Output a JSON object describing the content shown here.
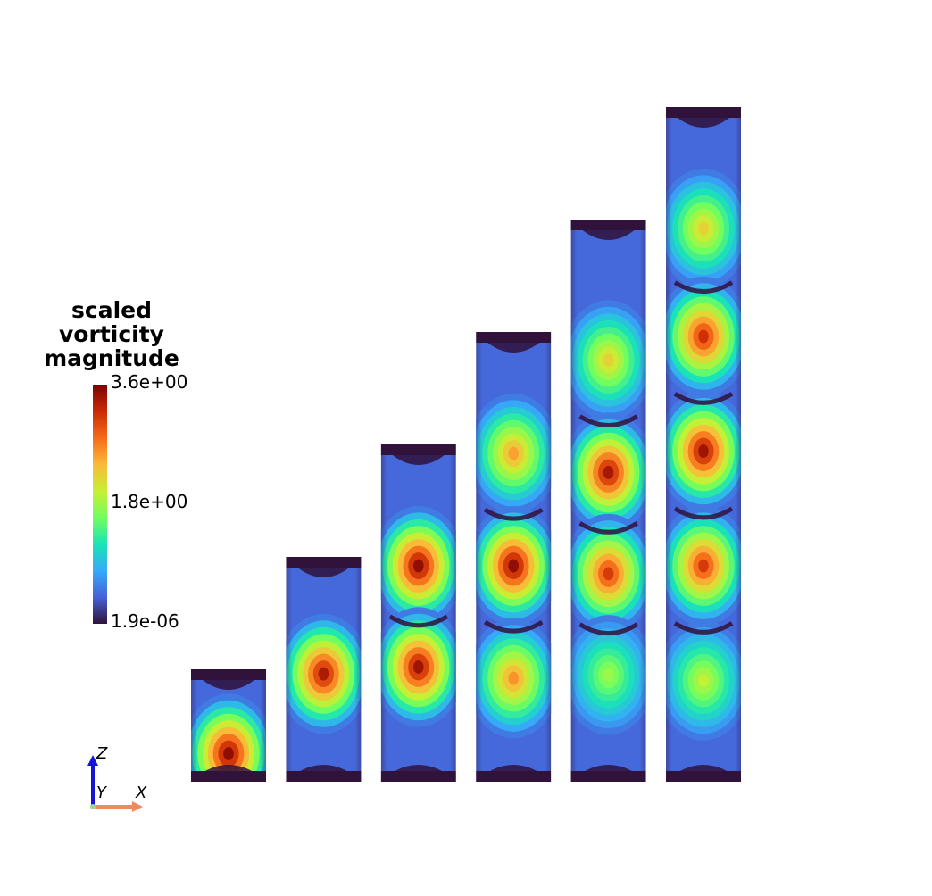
{
  "legend": {
    "title_lines": [
      "scaled",
      "vorticity",
      "magnitude"
    ],
    "max_label": "3.6e+00",
    "mid_label": "1.8e+00",
    "min_label": "1.9e-06",
    "colormap": [
      "#30123b",
      "#4662d7",
      "#36aaf9",
      "#1ae4b6",
      "#72fe5e",
      "#c8ef34",
      "#faba39",
      "#f66b19",
      "#ca2a04",
      "#7a0403"
    ]
  },
  "axes": {
    "z": "Z",
    "y": "Y",
    "x": "X",
    "z_color": "#1414d4",
    "x_color": "#f08a5d"
  },
  "panels": [
    {
      "aspect": 1.5,
      "cores": [
        0.75
      ],
      "core_level": [
        0.97
      ]
    },
    {
      "aspect": 3.0,
      "cores": [
        0.52
      ],
      "core_level": [
        0.93
      ]
    },
    {
      "aspect": 4.5,
      "cores": [
        0.36,
        0.66
      ],
      "core_level": [
        0.97,
        0.95
      ]
    },
    {
      "aspect": 6.0,
      "cores": [
        0.27,
        0.52,
        0.77
      ],
      "core_level": [
        0.7,
        0.97,
        0.72
      ]
    },
    {
      "aspect": 7.5,
      "cores": [
        0.25,
        0.45,
        0.63,
        0.81
      ],
      "core_level": [
        0.62,
        0.94,
        0.86,
        0.5
      ]
    },
    {
      "aspect": 9.0,
      "cores": [
        0.18,
        0.34,
        0.51,
        0.68,
        0.85
      ],
      "core_level": [
        0.62,
        0.88,
        0.95,
        0.86,
        0.55
      ]
    }
  ]
}
